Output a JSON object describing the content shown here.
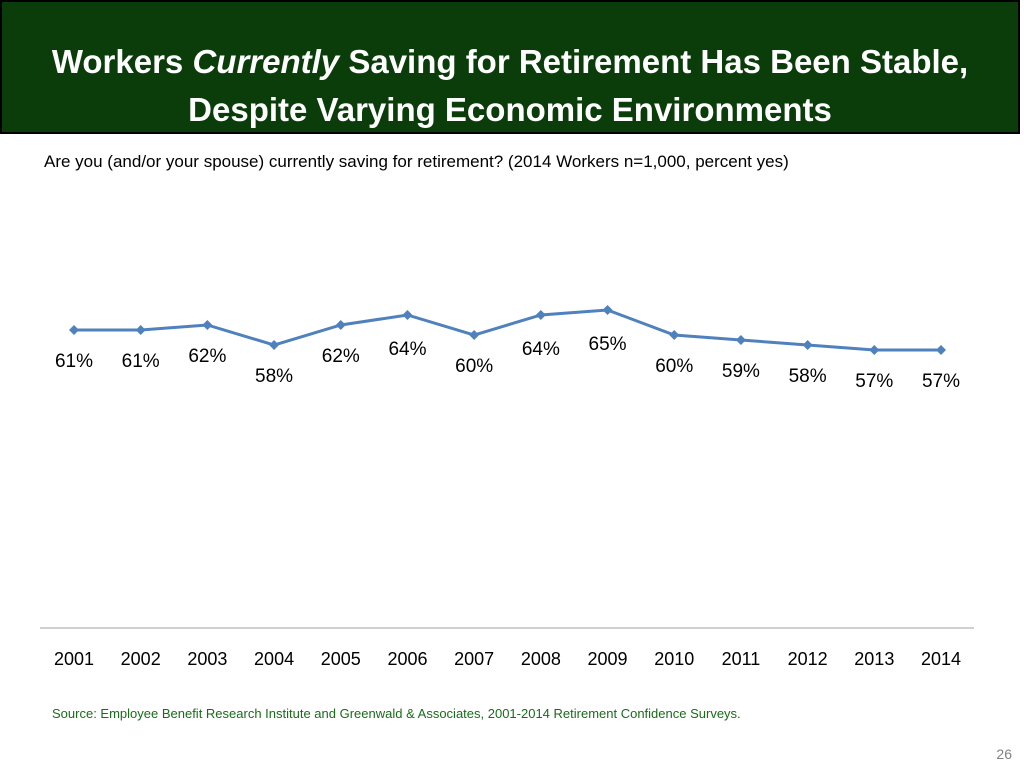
{
  "title": {
    "part1": "Workers ",
    "emphasis": "Currently",
    "part2": " Saving for Retirement Has Been Stable,",
    "line2": "Despite Varying Economic Environments"
  },
  "subtitle": "Are you (and/or your spouse) currently saving for retirement?  (2014 Workers n=1,000, percent yes)",
  "source": "Source:  Employee Benefit Research Institute and Greenwald & Associates, 2001-2014 Retirement Confidence Surveys.",
  "page_number": "26",
  "colors": {
    "title_bg": "#0b3d0b",
    "line": "#4f81bd",
    "source_text": "#1a6b1a"
  },
  "chart_data": {
    "type": "line",
    "title": "",
    "xlabel": "",
    "ylabel": "",
    "categories": [
      "2001",
      "2002",
      "2003",
      "2004",
      "2005",
      "2006",
      "2007",
      "2008",
      "2009",
      "2010",
      "2011",
      "2012",
      "2013",
      "2014"
    ],
    "series": [
      {
        "name": "Percent yes",
        "values": [
          61,
          61,
          62,
          58,
          62,
          64,
          60,
          64,
          65,
          60,
          59,
          58,
          57,
          57
        ],
        "labels": [
          "61%",
          "61%",
          "62%",
          "58%",
          "62%",
          "64%",
          "60%",
          "64%",
          "65%",
          "60%",
          "59%",
          "58%",
          "57%",
          "57%"
        ]
      }
    ],
    "grid": false,
    "legend": "none"
  }
}
